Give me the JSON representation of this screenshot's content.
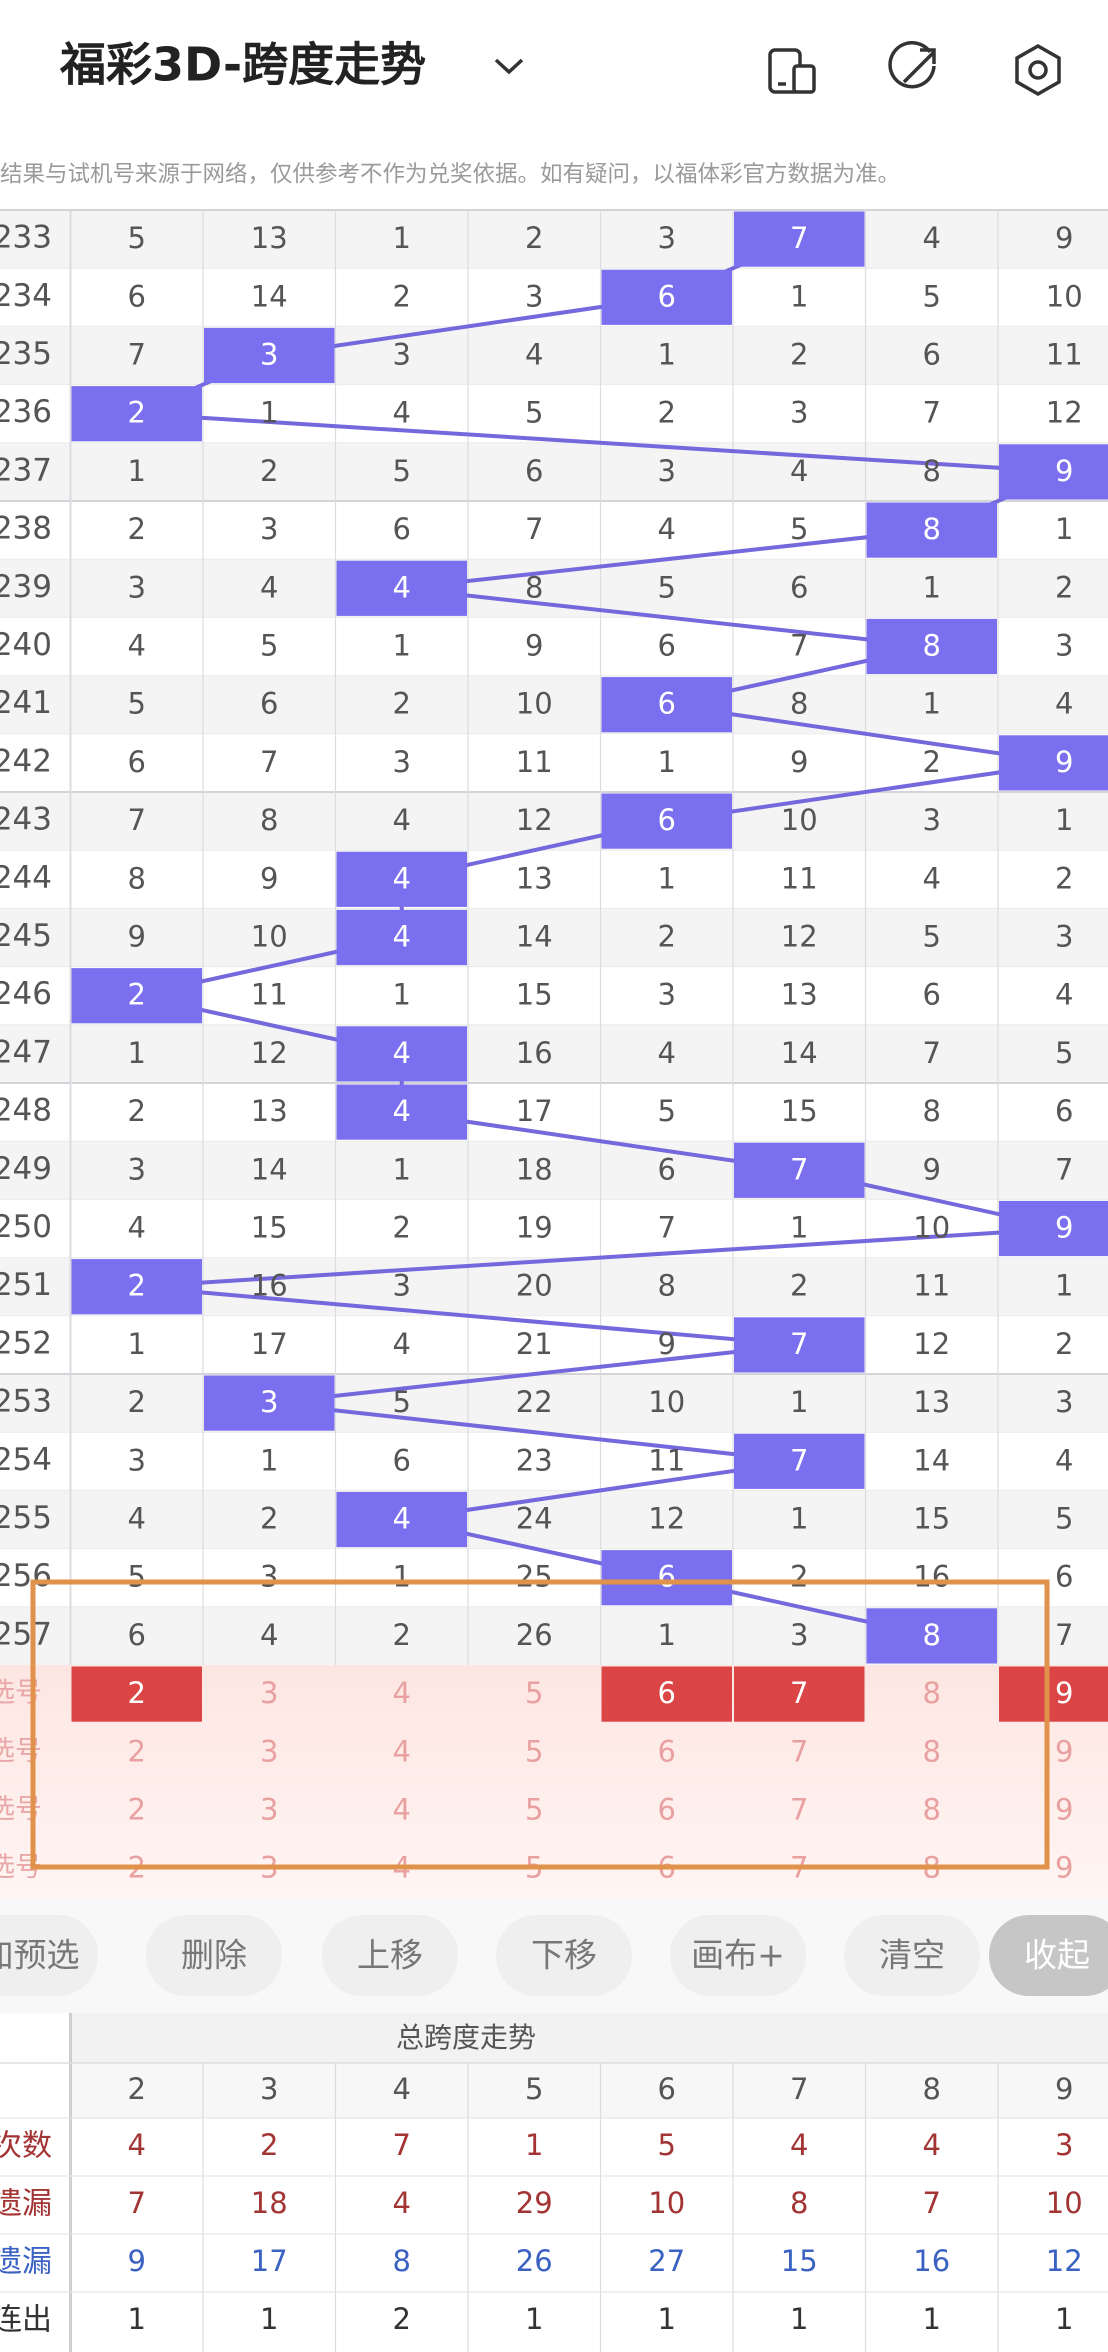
{
  "header": {
    "title": "福彩3D-跨度走势"
  },
  "notice": "结果与试机号来源于网络，仅供参考不作为兑奖依据。如有疑问，以福体彩官方数据为准。",
  "table": {
    "rows": [
      {
        "period": 233,
        "cells": [
          5,
          13,
          1,
          2,
          3,
          7,
          4,
          9
        ],
        "hit": 5
      },
      {
        "period": 234,
        "cells": [
          6,
          14,
          2,
          3,
          6,
          1,
          5,
          10
        ],
        "hit": 4
      },
      {
        "period": 235,
        "cells": [
          7,
          3,
          3,
          4,
          1,
          2,
          6,
          11
        ],
        "hit": 1
      },
      {
        "period": 236,
        "cells": [
          2,
          1,
          4,
          5,
          2,
          3,
          7,
          12
        ],
        "hit": 0
      },
      {
        "period": 237,
        "cells": [
          1,
          2,
          5,
          6,
          3,
          4,
          8,
          9
        ],
        "hit": 7
      },
      {
        "period": 238,
        "cells": [
          2,
          3,
          6,
          7,
          4,
          5,
          8,
          1
        ],
        "hit": 6
      },
      {
        "period": 239,
        "cells": [
          3,
          4,
          4,
          8,
          5,
          6,
          1,
          2
        ],
        "hit": 2
      },
      {
        "period": 240,
        "cells": [
          4,
          5,
          1,
          9,
          6,
          7,
          8,
          3
        ],
        "hit": 6
      },
      {
        "period": 241,
        "cells": [
          5,
          6,
          2,
          10,
          6,
          8,
          1,
          4
        ],
        "hit": 4
      },
      {
        "period": 242,
        "cells": [
          6,
          7,
          3,
          11,
          1,
          9,
          2,
          9
        ],
        "hit": 7
      },
      {
        "period": 243,
        "cells": [
          7,
          8,
          4,
          12,
          6,
          10,
          3,
          1
        ],
        "hit": 4
      },
      {
        "period": 244,
        "cells": [
          8,
          9,
          4,
          13,
          1,
          11,
          4,
          2
        ],
        "hit": 2
      },
      {
        "period": 245,
        "cells": [
          9,
          10,
          4,
          14,
          2,
          12,
          5,
          3
        ],
        "hit": 2
      },
      {
        "period": 246,
        "cells": [
          2,
          11,
          1,
          15,
          3,
          13,
          6,
          4
        ],
        "hit": 0
      },
      {
        "period": 247,
        "cells": [
          1,
          12,
          4,
          16,
          4,
          14,
          7,
          5
        ],
        "hit": 2
      },
      {
        "period": 248,
        "cells": [
          2,
          13,
          4,
          17,
          5,
          15,
          8,
          6
        ],
        "hit": 2
      },
      {
        "period": 249,
        "cells": [
          3,
          14,
          1,
          18,
          6,
          7,
          9,
          7
        ],
        "hit": 5
      },
      {
        "period": 250,
        "cells": [
          4,
          15,
          2,
          19,
          7,
          1,
          10,
          9
        ],
        "hit": 7
      },
      {
        "period": 251,
        "cells": [
          2,
          16,
          3,
          20,
          8,
          2,
          11,
          1
        ],
        "hit": 0
      },
      {
        "period": 252,
        "cells": [
          1,
          17,
          4,
          21,
          9,
          7,
          12,
          2
        ],
        "hit": 5
      },
      {
        "period": 253,
        "cells": [
          2,
          3,
          5,
          22,
          10,
          1,
          13,
          3
        ],
        "hit": 1
      },
      {
        "period": 254,
        "cells": [
          3,
          1,
          6,
          23,
          11,
          7,
          14,
          4
        ],
        "hit": 5
      },
      {
        "period": 255,
        "cells": [
          4,
          2,
          4,
          24,
          12,
          1,
          15,
          5
        ],
        "hit": 2
      },
      {
        "period": 256,
        "cells": [
          5,
          3,
          1,
          25,
          6,
          2,
          16,
          6
        ],
        "hit": 4
      },
      {
        "period": 257,
        "cells": [
          6,
          4,
          2,
          26,
          1,
          3,
          8,
          7
        ],
        "hit": 6
      }
    ]
  },
  "picker": {
    "numbers": [
      2,
      3,
      4,
      5,
      6,
      7,
      8,
      9
    ],
    "rows": [
      {
        "label": "选号",
        "selected": [
          0,
          4,
          5,
          7
        ]
      },
      {
        "label": "选号",
        "selected": []
      },
      {
        "label": "选号",
        "selected": []
      },
      {
        "label": "选号",
        "selected": []
      }
    ]
  },
  "buttons": [
    "加预选",
    "删除",
    "上移",
    "下移",
    "画布+",
    "清空",
    "收起"
  ],
  "summary": {
    "title": "总跨度走势",
    "columns": [
      2,
      3,
      4,
      5,
      6,
      7,
      8,
      9
    ],
    "rows": [
      {
        "label": "次数",
        "values": [
          4,
          2,
          7,
          1,
          5,
          4,
          4,
          3
        ],
        "color": "#a33434"
      },
      {
        "label": "遗漏",
        "values": [
          7,
          18,
          4,
          29,
          10,
          8,
          7,
          10
        ],
        "color": "#a33434"
      },
      {
        "label": "遗漏",
        "values": [
          9,
          17,
          8,
          26,
          27,
          15,
          16,
          12
        ],
        "color": "#3b62c2"
      },
      {
        "label": "连出",
        "values": [
          1,
          1,
          2,
          1,
          1,
          1,
          1,
          1
        ],
        "color": "#333333"
      }
    ]
  }
}
